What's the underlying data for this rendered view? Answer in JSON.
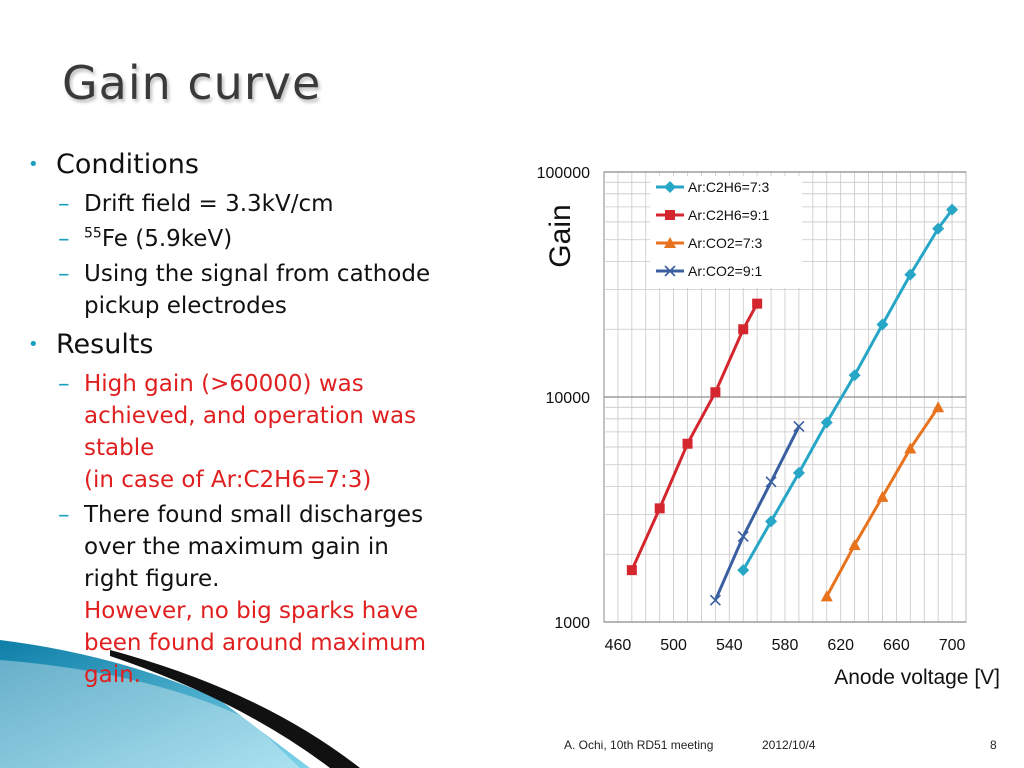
{
  "slide": {
    "title": "Gain curve",
    "conditions_heading": "Conditions",
    "drift_field": "Drift field = 3.3kV/cm",
    "fe_sup": "55",
    "fe_text": "Fe (5.9keV)",
    "signal_line1": "Using the signal from cathode",
    "signal_line2": "pickup electrodes",
    "results_heading": "Results",
    "high_gain_line1": "High gain (>60000) was",
    "high_gain_line2": "achieved, and operation was",
    "high_gain_line3": "stable",
    "high_gain_line4": "(in case of Ar:C2H6=7:3)",
    "discharge_line1": "There found small discharges",
    "discharge_line2": "over the maximum gain in",
    "discharge_line3": "right figure.",
    "sparks_line1": "However, no big sparks have",
    "sparks_line2": "been found around maximum",
    "sparks_line3": "gain."
  },
  "footer": {
    "author": "A. Ochi,  10th RD51 meeting",
    "date": "2012/10/4",
    "page": "8"
  },
  "colors": {
    "accent": "#1a9fbf",
    "red_text": "#e02020"
  },
  "chart_data": {
    "type": "line",
    "xlabel": "Anode voltage [V]",
    "ylabel": "Gain",
    "ylog": true,
    "xlim": [
      450,
      710
    ],
    "ylim": [
      1000,
      100000
    ],
    "xticks": [
      "460",
      "500",
      "540",
      "580",
      "620",
      "660",
      "700"
    ],
    "yticks": [
      "1000",
      "10000",
      "100000"
    ],
    "grid": true,
    "legend_position": "top-right",
    "series": [
      {
        "name": "Ar:C2H6=7:3",
        "color": "#27a6c6",
        "marker": "diamond",
        "x": [
          550,
          570,
          590,
          610,
          630,
          650,
          670,
          690,
          700
        ],
        "y": [
          1700,
          2800,
          4600,
          7700,
          12500,
          21000,
          35000,
          56000,
          68000
        ]
      },
      {
        "name": "Ar:C2H6=9:1",
        "color": "#d4262f",
        "marker": "square",
        "x": [
          470,
          490,
          510,
          530,
          550,
          560
        ],
        "y": [
          1700,
          3200,
          6200,
          10500,
          20000,
          26000
        ]
      },
      {
        "name": "Ar:CO2=7:3",
        "color": "#e8731e",
        "marker": "triangle",
        "x": [
          610,
          630,
          650,
          670,
          690
        ],
        "y": [
          1300,
          2200,
          3600,
          5900,
          9000
        ]
      },
      {
        "name": "Ar:CO2=9:1",
        "color": "#3a5fa0",
        "marker": "x",
        "x": [
          530,
          550,
          570,
          590
        ],
        "y": [
          1250,
          2400,
          4200,
          7400
        ]
      }
    ]
  }
}
